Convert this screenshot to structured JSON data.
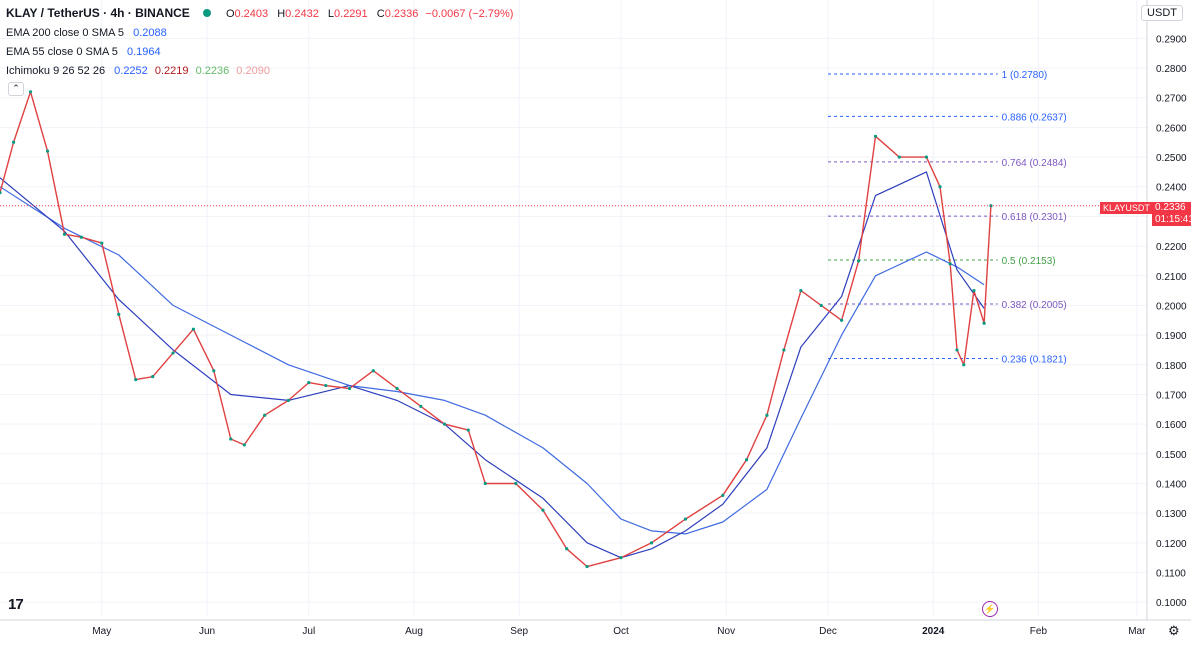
{
  "header": {
    "symbol": "KLAY / TetherUS · 4h · BINANCE",
    "ohlc": [
      {
        "k": "O",
        "v": "0.2403"
      },
      {
        "k": "H",
        "v": "0.2432"
      },
      {
        "k": "L",
        "v": "0.2291"
      },
      {
        "k": "C",
        "v": "0.2336"
      }
    ],
    "change": "−0.0067 (−2.79%)",
    "currency": "USDT"
  },
  "indicators": [
    {
      "label": "EMA 200 close 0 SMA 5",
      "values": [
        {
          "v": "0.2088",
          "color": "#2962ff"
        }
      ]
    },
    {
      "label": "EMA 55 close 0 SMA 5",
      "values": [
        {
          "v": "0.1964",
          "color": "#2962ff"
        }
      ]
    },
    {
      "label": "Ichimoku 9 26 52 26",
      "values": [
        {
          "v": "0.2252",
          "color": "#2962ff"
        },
        {
          "v": "0.2219",
          "color": "#b71c1c"
        },
        {
          "v": "0.2236",
          "color": "#66bb6a"
        },
        {
          "v": "0.2090",
          "color": "#ef9a9a"
        }
      ]
    }
  ],
  "collapse_glyph": "⌃",
  "logo": "17",
  "price_tag": {
    "symbol": "KLAYUSDT",
    "price": "0.2336",
    "countdown": "01:15:41"
  },
  "icons": [
    "collapse-icon",
    "tradingview-logo-icon",
    "lightning-icon",
    "settings-gear-icon"
  ],
  "chart_data": {
    "type": "line",
    "y_ticks": [
      "0.2900",
      "0.2800",
      "0.2700",
      "0.2600",
      "0.2500",
      "0.2400",
      "0.2300",
      "0.2200",
      "0.2100",
      "0.2000",
      "0.1900",
      "0.1800",
      "0.1700",
      "0.1600",
      "0.1500",
      "0.1400",
      "0.1300",
      "0.1200",
      "0.1100",
      "0.1000"
    ],
    "ylim": [
      0.095,
      0.2935
    ],
    "x_ticks": [
      "May",
      "Jun",
      "Jul",
      "Aug",
      "Sep",
      "Oct",
      "Nov",
      "Dec",
      "2024",
      "Feb",
      "Mar"
    ],
    "xlim": [
      "2023-04-01",
      "2024-03-04"
    ],
    "price_series": {
      "name": "KLAYUSDT",
      "x": [
        "2023-04-01",
        "2023-04-05",
        "2023-04-10",
        "2023-04-15",
        "2023-04-20",
        "2023-04-25",
        "2023-05-01",
        "2023-05-06",
        "2023-05-11",
        "2023-05-16",
        "2023-05-22",
        "2023-05-28",
        "2023-06-03",
        "2023-06-08",
        "2023-06-12",
        "2023-06-18",
        "2023-06-25",
        "2023-07-01",
        "2023-07-06",
        "2023-07-13",
        "2023-07-20",
        "2023-07-27",
        "2023-08-03",
        "2023-08-10",
        "2023-08-17",
        "2023-08-22",
        "2023-08-31",
        "2023-09-08",
        "2023-09-15",
        "2023-09-21",
        "2023-10-01",
        "2023-10-10",
        "2023-10-20",
        "2023-10-31",
        "2023-11-07",
        "2023-11-13",
        "2023-11-18",
        "2023-11-23",
        "2023-11-29",
        "2023-12-05",
        "2023-12-10",
        "2023-12-15",
        "2023-12-22",
        "2023-12-30",
        "2024-01-03",
        "2024-01-06",
        "2024-01-08",
        "2024-01-10",
        "2024-01-13",
        "2024-01-16",
        "2024-01-18"
      ],
      "y": [
        0.238,
        0.255,
        0.272,
        0.252,
        0.224,
        0.223,
        0.221,
        0.197,
        0.175,
        0.176,
        0.184,
        0.192,
        0.178,
        0.155,
        0.153,
        0.163,
        0.168,
        0.174,
        0.173,
        0.172,
        0.178,
        0.172,
        0.166,
        0.16,
        0.158,
        0.14,
        0.14,
        0.131,
        0.118,
        0.112,
        0.115,
        0.12,
        0.128,
        0.136,
        0.148,
        0.163,
        0.185,
        0.205,
        0.2,
        0.195,
        0.215,
        0.257,
        0.25,
        0.25,
        0.24,
        0.214,
        0.185,
        0.18,
        0.205,
        0.194,
        0.2336
      ]
    },
    "ema200_series": {
      "name": "EMA 200",
      "x": [
        "2023-04-01",
        "2023-04-20",
        "2023-05-06",
        "2023-05-22",
        "2023-06-08",
        "2023-06-25",
        "2023-07-13",
        "2023-07-27",
        "2023-08-10",
        "2023-08-22",
        "2023-09-08",
        "2023-09-21",
        "2023-10-01",
        "2023-10-10",
        "2023-10-20",
        "2023-10-31",
        "2023-11-13",
        "2023-11-23",
        "2023-12-05",
        "2023-12-15",
        "2023-12-30",
        "2024-01-08",
        "2024-01-16"
      ],
      "y": [
        0.24,
        0.226,
        0.217,
        0.2,
        0.19,
        0.18,
        0.173,
        0.171,
        0.168,
        0.163,
        0.152,
        0.14,
        0.128,
        0.124,
        0.123,
        0.127,
        0.138,
        0.162,
        0.19,
        0.21,
        0.218,
        0.213,
        0.207
      ]
    },
    "ema55_series": {
      "name": "EMA 55",
      "x": [
        "2023-04-01",
        "2023-04-20",
        "2023-05-06",
        "2023-05-22",
        "2023-06-08",
        "2023-06-25",
        "2023-07-13",
        "2023-07-27",
        "2023-08-10",
        "2023-08-22",
        "2023-09-08",
        "2023-09-21",
        "2023-10-01",
        "2023-10-10",
        "2023-10-20",
        "2023-10-31",
        "2023-11-13",
        "2023-11-23",
        "2023-12-05",
        "2023-12-15",
        "2023-12-30",
        "2024-01-08",
        "2024-01-16"
      ],
      "y": [
        0.243,
        0.225,
        0.202,
        0.185,
        0.17,
        0.168,
        0.173,
        0.168,
        0.16,
        0.148,
        0.135,
        0.12,
        0.115,
        0.118,
        0.124,
        0.133,
        0.152,
        0.186,
        0.203,
        0.237,
        0.245,
        0.212,
        0.199
      ]
    },
    "fibonacci": [
      {
        "label": "1 (0.2780)",
        "value": 0.278,
        "color": "#2962ff"
      },
      {
        "label": "0.886 (0.2637)",
        "value": 0.2637,
        "color": "#2962ff"
      },
      {
        "label": "0.764 (0.2484)",
        "value": 0.2484,
        "color": "#7e57c2"
      },
      {
        "label": "0.618 (0.2301)",
        "value": 0.2301,
        "color": "#7e57c2"
      },
      {
        "label": "0.5 (0.2153)",
        "value": 0.2153,
        "color": "#43a047"
      },
      {
        "label": "0.382 (0.2005)",
        "value": 0.2005,
        "color": "#7e57c2"
      },
      {
        "label": "0.236 (0.1821)",
        "value": 0.1821,
        "color": "#2962ff"
      }
    ],
    "fib_start": "2023-12-01",
    "fib_end": "2024-01-20",
    "last_price": 0.2336,
    "grid": true
  }
}
